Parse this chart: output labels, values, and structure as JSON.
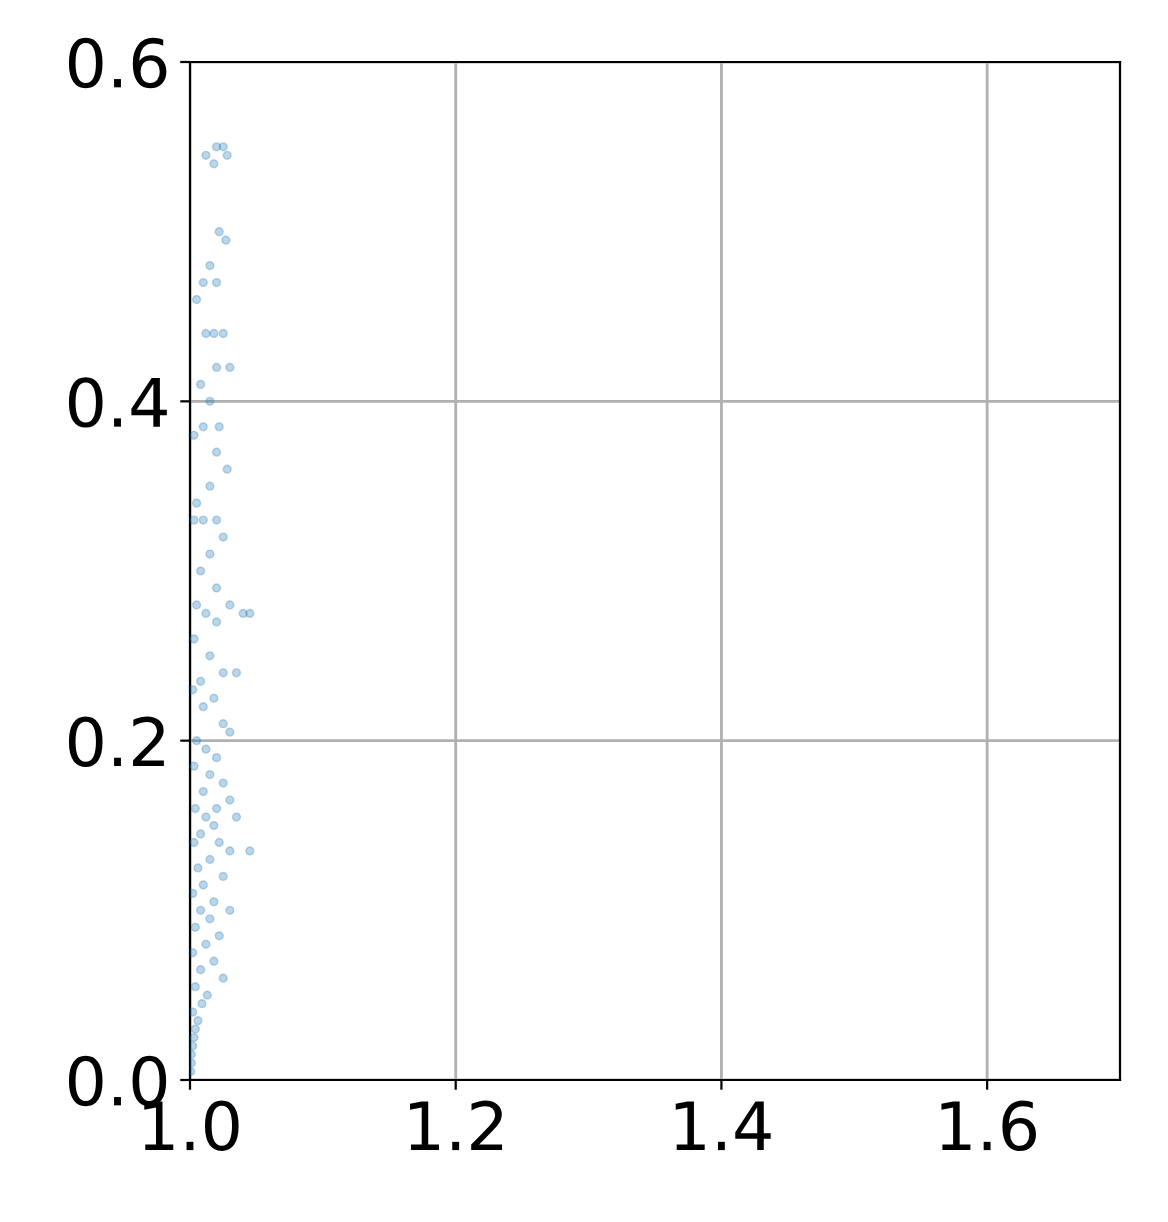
{
  "chart_data": {
    "type": "scatter",
    "xlim": [
      1.0,
      1.7
    ],
    "ylim": [
      0.0,
      0.6
    ],
    "xticks": [
      {
        "value": 1.0,
        "label": "1.0"
      },
      {
        "value": 1.2,
        "label": "1.2"
      },
      {
        "value": 1.4,
        "label": "1.4"
      },
      {
        "value": 1.6,
        "label": "1.6"
      }
    ],
    "yticks": [
      {
        "value": 0.0,
        "label": "0.0"
      },
      {
        "value": 0.2,
        "label": "0.2"
      },
      {
        "value": 0.4,
        "label": "0.4"
      },
      {
        "value": 0.6,
        "label": "0.6"
      }
    ],
    "grid": true,
    "marker": "circle",
    "series": [
      {
        "color": "#1f77b4",
        "x": [
          1.02,
          1.025,
          1.012,
          1.018,
          1.028,
          1.022,
          1.027,
          1.015,
          1.01,
          1.02,
          1.005,
          1.025,
          1.012,
          1.018,
          1.02,
          1.03,
          1.008,
          1.015,
          1.022,
          1.01,
          1.003,
          1.02,
          1.028,
          1.015,
          1.005,
          1.02,
          1.01,
          1.003,
          1.025,
          1.015,
          1.008,
          1.02,
          1.03,
          1.005,
          1.012,
          1.04,
          1.045,
          1.02,
          1.003,
          1.015,
          1.025,
          1.035,
          1.008,
          1.002,
          1.018,
          1.01,
          1.025,
          1.03,
          1.005,
          1.012,
          1.02,
          1.003,
          1.015,
          1.025,
          1.01,
          1.03,
          1.02,
          1.004,
          1.012,
          1.035,
          1.045,
          1.018,
          1.008,
          1.003,
          1.022,
          1.03,
          1.015,
          1.006,
          1.025,
          1.01,
          1.002,
          1.018,
          1.03,
          1.008,
          1.015,
          1.004,
          1.022,
          1.012,
          1.002,
          1.018,
          1.008,
          1.025,
          1.004,
          1.013,
          1.009,
          1.002,
          1.006,
          1.004,
          1.003,
          1.002,
          1.001,
          1.001,
          1.0005
        ],
        "values": [
          0.55,
          0.55,
          0.545,
          0.54,
          0.545,
          0.5,
          0.495,
          0.48,
          0.47,
          0.47,
          0.46,
          0.44,
          0.44,
          0.44,
          0.42,
          0.42,
          0.41,
          0.4,
          0.385,
          0.385,
          0.38,
          0.37,
          0.36,
          0.35,
          0.34,
          0.33,
          0.33,
          0.33,
          0.32,
          0.31,
          0.3,
          0.29,
          0.28,
          0.28,
          0.275,
          0.275,
          0.275,
          0.27,
          0.26,
          0.25,
          0.24,
          0.24,
          0.235,
          0.23,
          0.225,
          0.22,
          0.21,
          0.205,
          0.2,
          0.195,
          0.19,
          0.185,
          0.18,
          0.175,
          0.17,
          0.165,
          0.16,
          0.16,
          0.155,
          0.155,
          0.135,
          0.15,
          0.145,
          0.14,
          0.14,
          0.135,
          0.13,
          0.125,
          0.12,
          0.115,
          0.11,
          0.105,
          0.1,
          0.1,
          0.095,
          0.09,
          0.085,
          0.08,
          0.075,
          0.07,
          0.065,
          0.06,
          0.055,
          0.05,
          0.045,
          0.04,
          0.035,
          0.03,
          0.025,
          0.02,
          0.015,
          0.01,
          0.005
        ]
      }
    ]
  }
}
